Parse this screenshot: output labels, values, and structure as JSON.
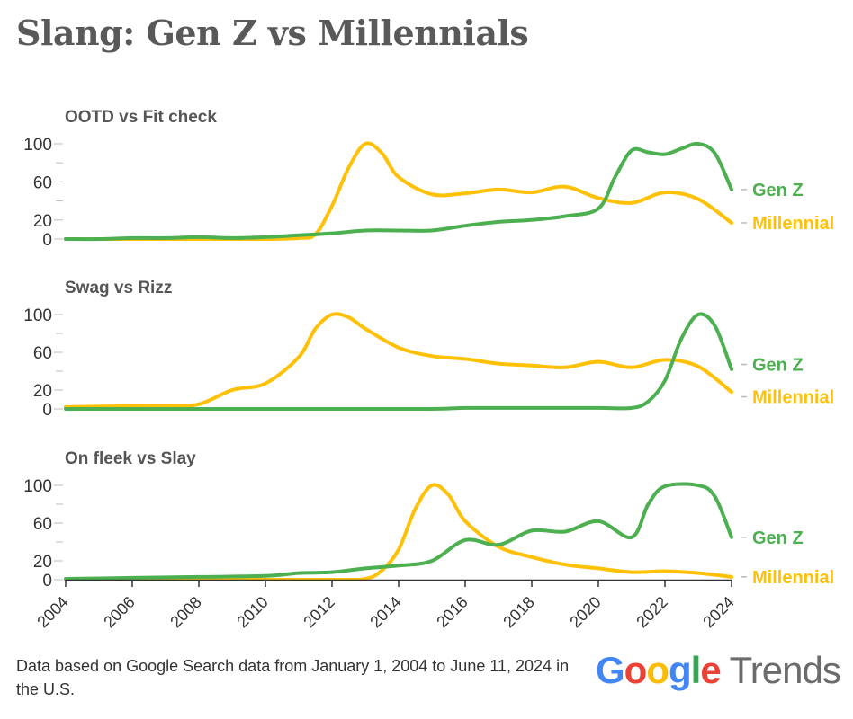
{
  "title": "Slang: Gen Z vs Millennials",
  "footnote": "Data based on Google Search data from January 1, 2004 to June 11, 2024 in the U.S.",
  "logo": {
    "word": "Google",
    "product": "Trends",
    "letter_colors": [
      "#4285F4",
      "#EA4335",
      "#FBBC05",
      "#4285F4",
      "#34A853",
      "#EA4335"
    ]
  },
  "colors": {
    "gen_z": "#4CAF50",
    "millennial": "#FFC107",
    "axis": "#333333",
    "tick_mark": "#bbbbbb"
  },
  "chart_data": [
    {
      "type": "line",
      "title": "OOTD vs Fit check",
      "ylim": [
        0,
        100
      ],
      "yticks": [
        0,
        20,
        60,
        100
      ],
      "xlim": [
        2004,
        2024
      ],
      "series": [
        {
          "name": "Gen Z",
          "color": "#4CAF50",
          "x": [
            2004,
            2005,
            2006,
            2007,
            2008,
            2009,
            2010,
            2011,
            2012,
            2013,
            2014,
            2015,
            2016,
            2017,
            2018,
            2019,
            2020,
            2020.5,
            2021,
            2021.5,
            2022,
            2022.5,
            2023,
            2023.5,
            2024
          ],
          "y": [
            0,
            0,
            1,
            1,
            2,
            1,
            2,
            4,
            6,
            9,
            9,
            9,
            14,
            18,
            20,
            24,
            32,
            65,
            93,
            91,
            89,
            95,
            100,
            90,
            52
          ]
        },
        {
          "name": "Millennial",
          "color": "#FFC107",
          "x": [
            2004,
            2006,
            2008,
            2010,
            2011,
            2011.5,
            2012,
            2012.5,
            2013,
            2013.5,
            2014,
            2015,
            2016,
            2017,
            2018,
            2019,
            2020,
            2021,
            2022,
            2023,
            2024
          ],
          "y": [
            0,
            0,
            0,
            0,
            1,
            5,
            35,
            75,
            100,
            90,
            65,
            47,
            48,
            52,
            49,
            55,
            43,
            38,
            49,
            42,
            17
          ]
        }
      ]
    },
    {
      "type": "line",
      "title": "Swag vs Rizz",
      "ylim": [
        0,
        100
      ],
      "yticks": [
        0,
        20,
        60,
        100
      ],
      "xlim": [
        2004,
        2024
      ],
      "series": [
        {
          "name": "Gen Z",
          "color": "#4CAF50",
          "x": [
            2004,
            2008,
            2012,
            2015,
            2016,
            2018,
            2020,
            2021,
            2021.5,
            2022,
            2022.5,
            2023,
            2023.5,
            2024
          ],
          "y": [
            0,
            0,
            0,
            0,
            1,
            1,
            1,
            1,
            8,
            30,
            75,
            100,
            88,
            42
          ]
        },
        {
          "name": "Millennial",
          "color": "#FFC107",
          "x": [
            2004,
            2006,
            2007,
            2008,
            2009,
            2010,
            2011,
            2011.5,
            2012,
            2012.5,
            2013,
            2014,
            2015,
            2016,
            2017,
            2018,
            2019,
            2020,
            2021,
            2022,
            2023,
            2024
          ],
          "y": [
            2,
            3,
            3,
            5,
            20,
            27,
            55,
            85,
            100,
            97,
            85,
            65,
            56,
            53,
            48,
            46,
            44,
            50,
            44,
            52,
            45,
            18
          ]
        }
      ]
    },
    {
      "type": "line",
      "title": "On fleek vs Slay",
      "ylim": [
        0,
        100
      ],
      "yticks": [
        0,
        20,
        60,
        100
      ],
      "xlim": [
        2004,
        2024
      ],
      "series": [
        {
          "name": "Gen Z",
          "color": "#4CAF50",
          "x": [
            2004,
            2006,
            2008,
            2010,
            2011,
            2012,
            2013,
            2014,
            2015,
            2016,
            2017,
            2018,
            2019,
            2020,
            2021,
            2021.5,
            2022,
            2023,
            2023.5,
            2024
          ],
          "y": [
            1,
            2,
            3,
            4,
            7,
            8,
            12,
            15,
            20,
            42,
            37,
            52,
            51,
            62,
            45,
            80,
            99,
            100,
            88,
            45
          ]
        },
        {
          "name": "Millennial",
          "color": "#FFC107",
          "x": [
            2004,
            2008,
            2012,
            2013,
            2013.5,
            2014,
            2014.5,
            2015,
            2015.5,
            2016,
            2017,
            2018,
            2019,
            2020,
            2021,
            2022,
            2023,
            2024
          ],
          "y": [
            0,
            0,
            0,
            1,
            10,
            32,
            75,
            100,
            90,
            62,
            35,
            24,
            16,
            12,
            8,
            9,
            7,
            3
          ]
        }
      ]
    }
  ],
  "x_tick_labels": [
    "2004",
    "2006",
    "2008",
    "2010",
    "2012",
    "2014",
    "2016",
    "2018",
    "2020",
    "2022",
    "2024"
  ]
}
